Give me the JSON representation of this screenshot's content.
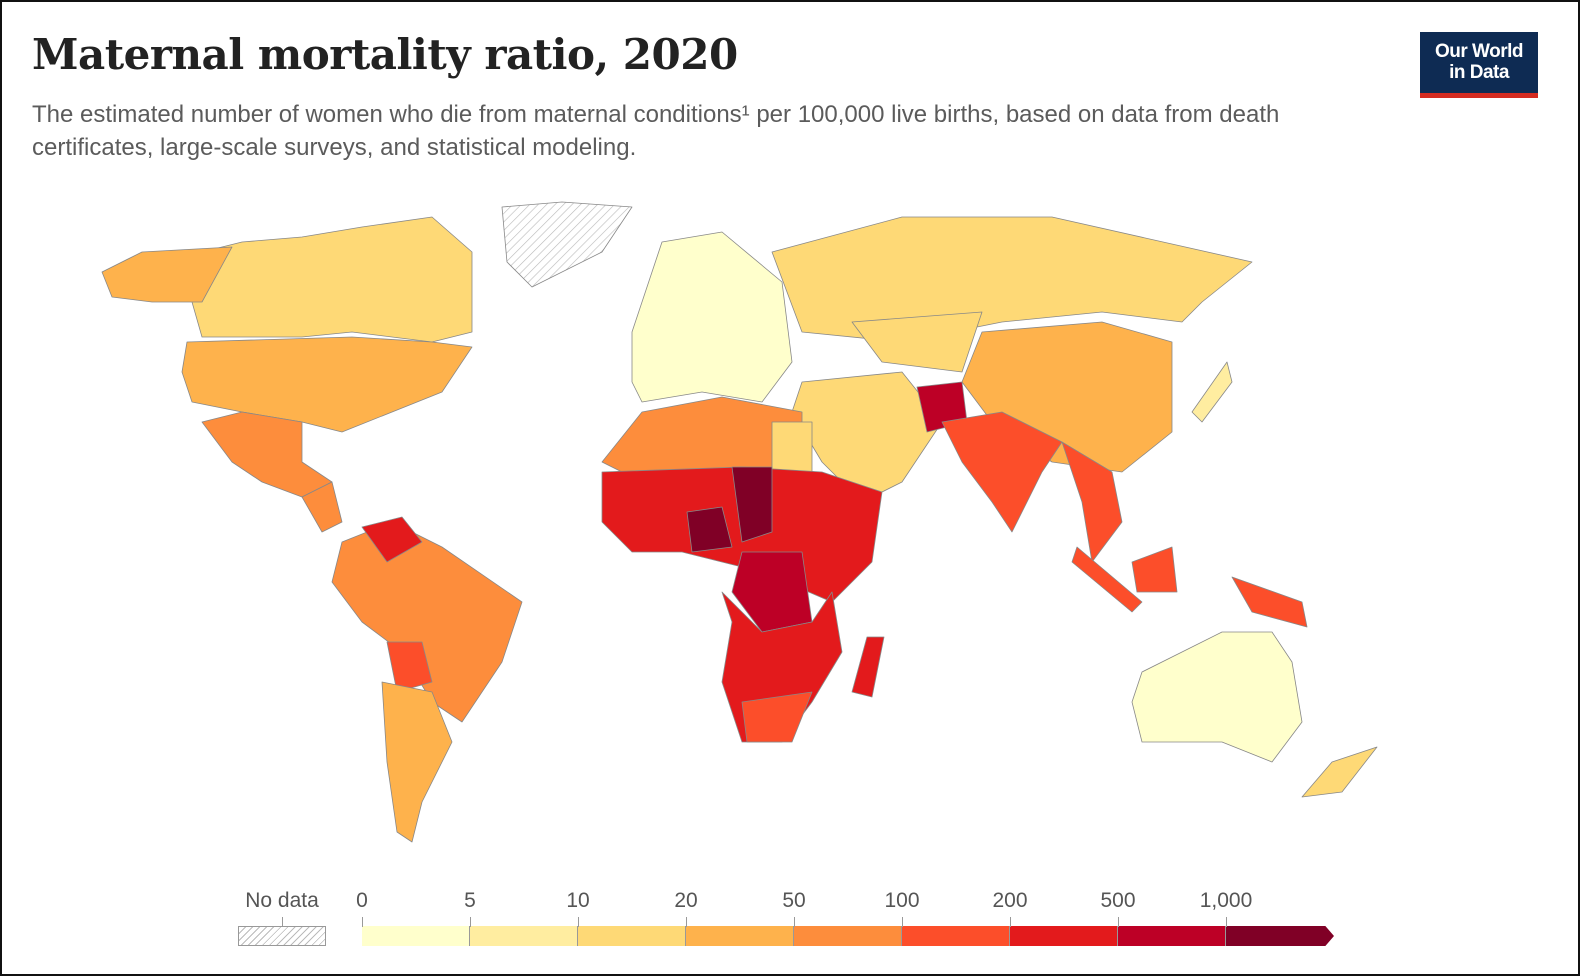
{
  "title": "Maternal mortality ratio, 2020",
  "subtitle": "The estimated number of women who die from maternal conditions¹ per 100,000 live births, based on data from death certificates, large-scale surveys, and statistical modeling.",
  "logo": {
    "line1": "Our World",
    "line2": "in Data",
    "bg": "#0e2b53",
    "accent": "#d42b21"
  },
  "legend": {
    "no_data_label": "No data",
    "ticks": [
      "0",
      "5",
      "10",
      "20",
      "50",
      "100",
      "200",
      "500",
      "1,000"
    ],
    "colors": [
      "#ffffcc",
      "#ffeda0",
      "#fed976",
      "#feb24c",
      "#fd8d3c",
      "#fc4e2a",
      "#e31a1c",
      "#bd0026",
      "#800026"
    ]
  }
}
